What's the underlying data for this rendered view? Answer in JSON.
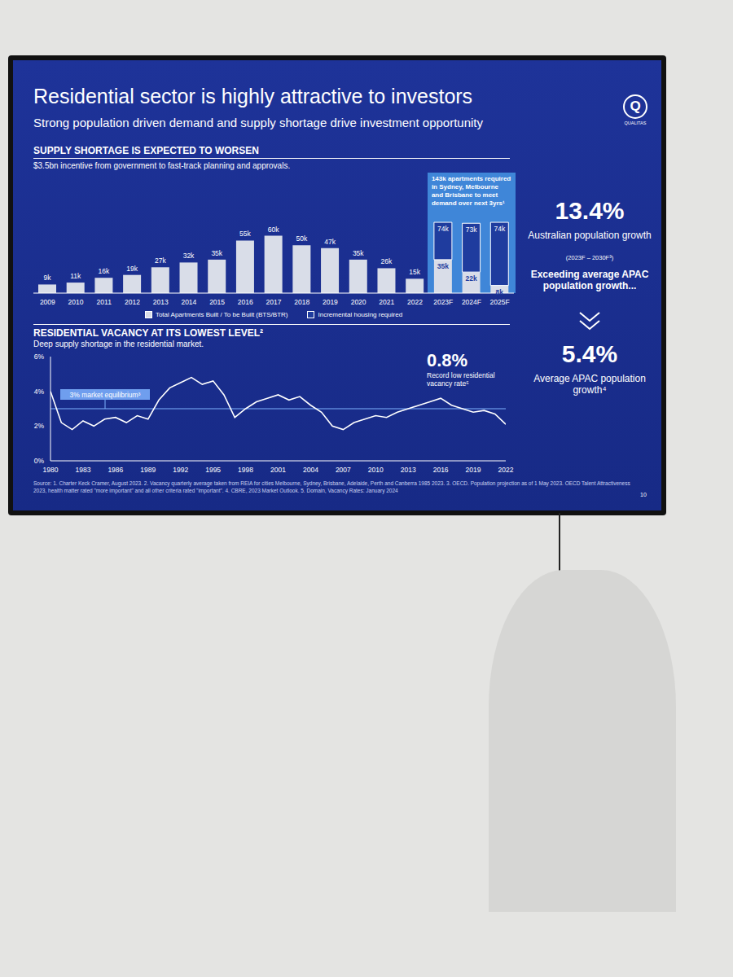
{
  "slide": {
    "title": "Residential sector is highly attractive to investors",
    "subtitle": "Strong population driven demand and supply shortage drive investment opportunity",
    "logo": {
      "mark": "Q",
      "name": "QUALITAS"
    },
    "side_panel": {
      "stat_1": "13.4%",
      "stat_1_label": "Australian population growth",
      "stat_1_note": "(2023F – 2030F³)",
      "bridge": "Exceeding average APAC population growth...",
      "stat_2": "5.4%",
      "stat_2_label": "Average APAC population growth⁴"
    },
    "source": "Source: 1. Charter Keck Cramer, August 2023. 2. Vacancy quarterly average taken from REIA for cities Melbourne, Sydney, Brisbane, Adelaide, Perth and Canberra 1985 2023. 3. OECD. Population projection as of 1 May 2023. OECD Talent Attractiveness 2023, health matter rated \"more important\" and all other criteria rated \"important\". 4. CBRE, 2023 Market Outlook. 5. Domain, Vacancy Rates: January 2024",
    "page": "10"
  },
  "chart_data": [
    {
      "type": "bar",
      "title": "SUPPLY SHORTAGE IS EXPECTED TO WORSEN",
      "subtitle": "$3.5bn incentive from government to fast-track planning and approvals.",
      "callout": {
        "text": "143k apartments required in Sydney, Melbourne and Brisbane to meet demand over next 3yrs¹",
        "color": "#3f86d8"
      },
      "categories": [
        "2009",
        "2010",
        "2011",
        "2012",
        "2013",
        "2014",
        "2015",
        "2016",
        "2017",
        "2018",
        "2019",
        "2020",
        "2021",
        "2022",
        "2023F",
        "2024F",
        "2025F"
      ],
      "series": [
        {
          "name": "Total Apartments Built / To be Built (BTS/BTR)",
          "color": "#d9dde8",
          "values": [
            9,
            11,
            16,
            19,
            27,
            32,
            35,
            55,
            60,
            50,
            47,
            35,
            26,
            15,
            35,
            22,
            8
          ],
          "value_labels": [
            "9k",
            "11k",
            "16k",
            "19k",
            "27k",
            "32k",
            "35k",
            "55k",
            "60k",
            "50k",
            "47k",
            "35k",
            "26k",
            "15k",
            "35k",
            "22k",
            "8k"
          ]
        },
        {
          "name": "Incremental housing required",
          "color": "#1f3c9e",
          "values": [
            null,
            null,
            null,
            null,
            null,
            null,
            null,
            null,
            null,
            null,
            null,
            null,
            null,
            null,
            39,
            51,
            66
          ]
        }
      ],
      "total_labels": [
        null,
        null,
        null,
        null,
        null,
        null,
        null,
        null,
        null,
        null,
        null,
        null,
        null,
        null,
        "74k",
        "73k",
        "74k"
      ],
      "stacked": true,
      "data_labels": true,
      "ylim": [
        0,
        80
      ],
      "tick_labels": "x",
      "grid": false,
      "legend": "bottom"
    },
    {
      "type": "line",
      "title": "RESIDENTIAL VACANCY AT ITS LOWEST LEVEL²",
      "subtitle": "Deep supply shortage in the residential market.",
      "annotation": {
        "value_text": "0.8%",
        "text": "Record low residential vacancy rate⁵"
      },
      "reference_line": {
        "value": 3,
        "label": "3% market equilibrium³",
        "color": "#7fb3ff"
      },
      "x": [
        1980,
        1981,
        1982,
        1983,
        1984,
        1985,
        1986,
        1987,
        1988,
        1989,
        1990,
        1991,
        1992,
        1993,
        1994,
        1995,
        1996,
        1997,
        1998,
        1999,
        2000,
        2001,
        2002,
        2003,
        2004,
        2005,
        2006,
        2007,
        2008,
        2009,
        2010,
        2011,
        2012,
        2013,
        2014,
        2015,
        2016,
        2017,
        2018,
        2019,
        2020,
        2021,
        2022
      ],
      "values": [
        4.0,
        2.2,
        1.8,
        2.3,
        2.0,
        2.4,
        2.5,
        2.2,
        2.6,
        2.4,
        3.5,
        4.2,
        4.5,
        4.8,
        4.4,
        4.6,
        3.8,
        2.5,
        3.0,
        3.4,
        3.6,
        3.8,
        3.5,
        3.7,
        3.2,
        2.8,
        2.0,
        1.8,
        2.2,
        2.4,
        2.6,
        2.5,
        2.8,
        3.0,
        3.2,
        3.4,
        3.6,
        3.2,
        3.0,
        2.8,
        2.9,
        2.7,
        2.1
      ],
      "color": "#ffffff",
      "xlim": [
        1980,
        2022
      ],
      "xticks": [
        1980,
        1983,
        1986,
        1989,
        1992,
        1995,
        1998,
        2001,
        2004,
        2007,
        2010,
        2013,
        2016,
        2019,
        2022
      ],
      "ylim": [
        0,
        6
      ],
      "yticks": [
        {
          "value": 0,
          "label": "0%"
        },
        {
          "value": 2,
          "label": "2%"
        },
        {
          "value": 4,
          "label": "4%"
        },
        {
          "value": 6,
          "label": "6%"
        }
      ],
      "grid": false
    }
  ]
}
